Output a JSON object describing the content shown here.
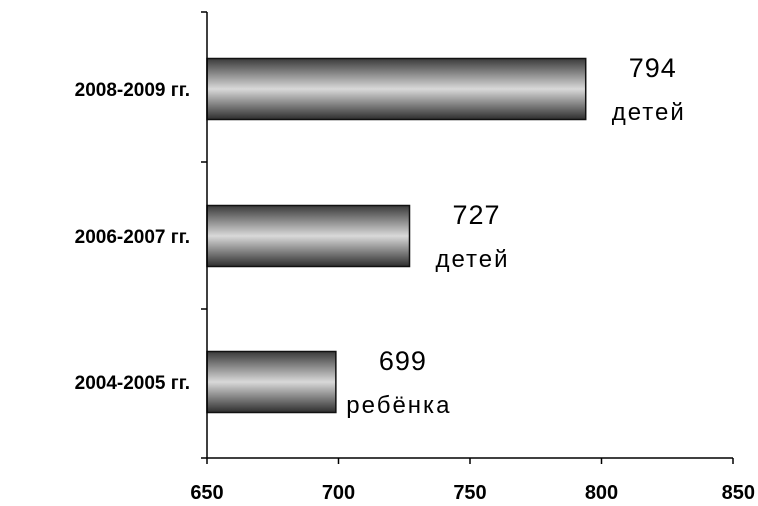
{
  "chart_data": {
    "type": "bar",
    "orientation": "horizontal",
    "categories": [
      "2008-2009 гг.",
      "2006-2007 гг.",
      "2004-2005 гг."
    ],
    "values": [
      794,
      727,
      699
    ],
    "data_labels": [
      {
        "value": "794",
        "unit": "детей"
      },
      {
        "value": "727",
        "unit": "детей"
      },
      {
        "value": "699",
        "unit": "ребёнка"
      }
    ],
    "xlim": [
      650,
      850
    ],
    "xticks": [
      650,
      700,
      750,
      800,
      850
    ],
    "tick_labels": [
      "650",
      "700",
      "750",
      "800",
      "850"
    ],
    "grid": false,
    "legend": "none",
    "bar_color": "#4a4a4a"
  }
}
